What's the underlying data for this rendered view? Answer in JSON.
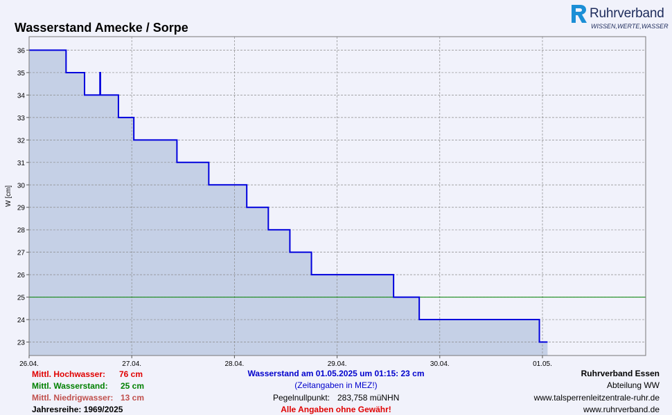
{
  "title": "Wasserstand Amecke / Sorpe",
  "logo": {
    "name": "Ruhrverband",
    "claim": "WISSEN,WERTE,WASSER"
  },
  "chart_data": {
    "type": "line",
    "ylabel": "W [cm]",
    "xlabel": "",
    "ylim": [
      22.4,
      36.6
    ],
    "yticks": [
      23,
      24,
      25,
      26,
      27,
      28,
      29,
      30,
      31,
      32,
      33,
      34,
      35,
      36
    ],
    "xlim_days": [
      0,
      6
    ],
    "xticks": [
      {
        "label": "26.04.",
        "day": 0
      },
      {
        "label": "27.04.",
        "day": 1
      },
      {
        "label": "28.04.",
        "day": 2
      },
      {
        "label": "29.04.",
        "day": 3
      },
      {
        "label": "30.04.",
        "day": 4
      },
      {
        "label": "01.05.",
        "day": 5
      }
    ],
    "grid": true,
    "reference_lines": [
      {
        "name": "Mittl. Wasserstand",
        "value": 25,
        "color": "#008000"
      }
    ],
    "series": [
      {
        "style": "step",
        "color": "#0000dd",
        "fill": "#c5d0e6",
        "points": [
          [
            0.0,
            36
          ],
          [
            0.36,
            35
          ],
          [
            0.54,
            34
          ],
          [
            0.69,
            35
          ],
          [
            0.695,
            34
          ],
          [
            0.87,
            33
          ],
          [
            1.02,
            32
          ],
          [
            1.44,
            31
          ],
          [
            1.75,
            30
          ],
          [
            2.12,
            29
          ],
          [
            2.33,
            28
          ],
          [
            2.54,
            27
          ],
          [
            2.75,
            26
          ],
          [
            3.55,
            25
          ],
          [
            3.8,
            24
          ],
          [
            4.97,
            23
          ],
          [
            5.05,
            23
          ]
        ]
      }
    ]
  },
  "legend": {
    "hw_label": "Mittl. Hochwasser:",
    "hw_value": "76 cm",
    "mw_label": "Mittl. Wasserstand:",
    "mw_value": "25 cm",
    "nw_label": "Mittl. Niedrigwasser:",
    "nw_value": "13 cm",
    "series_label": "Jahresreihe: 1969/2025"
  },
  "center_info": {
    "current": "Wasserstand am 01.05.2025 um 01:15: 23 cm",
    "tz": "(Zeitangaben in MEZ!)",
    "pegel_label": "Pegelnullpunkt:",
    "pegel_value": "283,758 müNHN",
    "disclaimer": "Alle Angaben ohne Gewähr!"
  },
  "right_info": {
    "org": "Ruhrverband Essen",
    "dept": "Abteilung WW",
    "url1": "www.talsperrenleitzentrale-ruhr.de",
    "url2": "www.ruhrverband.de"
  }
}
